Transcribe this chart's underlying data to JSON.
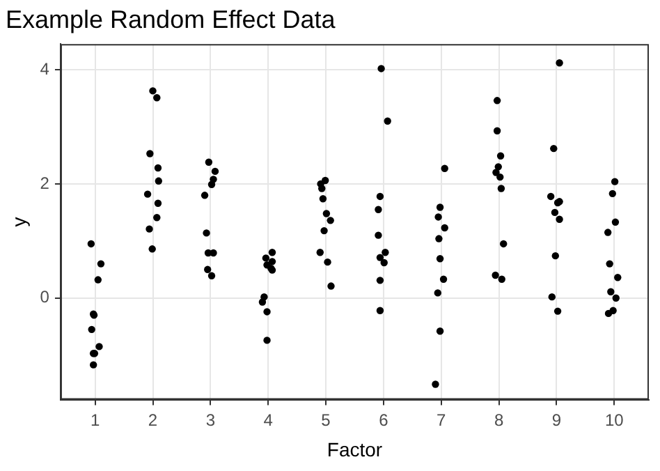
{
  "chart_data": {
    "type": "scatter",
    "title": "Example Random Effect Data",
    "xlabel": "Factor",
    "ylabel": "y",
    "color": "#000000",
    "marker": "circle",
    "grid": true,
    "xlim": [
      0.4,
      10.6
    ],
    "xticks": [
      1,
      2,
      3,
      4,
      5,
      6,
      7,
      8,
      9,
      10
    ],
    "ylim": [
      -1.78,
      4.45
    ],
    "yticks": [
      0,
      2,
      4
    ],
    "x": [
      0.93,
      1.1,
      1.05,
      0.97,
      0.98,
      0.94,
      1.07,
      0.97,
      0.99,
      0.97,
      2.0,
      2.07,
      1.95,
      2.09,
      2.1,
      1.91,
      2.09,
      2.07,
      1.94,
      1.99,
      2.97,
      3.08,
      3.05,
      3.02,
      2.9,
      2.93,
      2.96,
      3.05,
      2.95,
      3.02,
      4.07,
      3.96,
      4.07,
      3.98,
      4.07,
      4.05,
      3.93,
      3.9,
      3.98,
      3.98,
      4.99,
      4.91,
      4.93,
      4.95,
      5.01,
      5.08,
      4.97,
      4.9,
      5.03,
      5.09,
      5.96,
      6.07,
      5.94,
      5.91,
      5.91,
      6.03,
      5.94,
      6.01,
      5.94,
      5.94,
      7.06,
      6.98,
      6.95,
      7.06,
      6.96,
      6.98,
      7.04,
      6.94,
      6.98,
      6.9,
      7.97,
      7.97,
      8.03,
      7.99,
      7.95,
      8.02,
      8.04,
      8.08,
      7.94,
      8.05,
      9.05,
      8.95,
      8.9,
      9.05,
      9.02,
      8.97,
      9.05,
      8.98,
      8.92,
      9.02,
      10.01,
      9.97,
      10.02,
      9.89,
      9.92,
      10.06,
      9.94,
      10.03,
      9.98,
      9.9
    ],
    "values": [
      0.95,
      0.6,
      0.32,
      -0.28,
      -0.3,
      -0.55,
      -0.85,
      -0.97,
      -0.97,
      -1.17,
      3.63,
      3.51,
      2.53,
      2.28,
      2.05,
      1.82,
      1.66,
      1.41,
      1.21,
      0.86,
      2.38,
      2.22,
      2.08,
      1.99,
      1.8,
      1.14,
      0.79,
      0.79,
      0.5,
      0.39,
      0.8,
      0.7,
      0.64,
      0.58,
      0.49,
      0.52,
      0.02,
      -0.07,
      -0.24,
      -0.74,
      2.06,
      2.0,
      1.92,
      1.74,
      1.48,
      1.36,
      1.18,
      0.8,
      0.63,
      0.21,
      4.02,
      3.1,
      1.78,
      1.55,
      1.1,
      0.8,
      0.71,
      0.62,
      0.31,
      -0.22,
      2.27,
      1.59,
      1.42,
      1.23,
      1.04,
      0.69,
      0.33,
      0.09,
      -0.58,
      -1.51,
      3.46,
      2.93,
      2.49,
      2.3,
      2.2,
      2.12,
      1.92,
      0.95,
      0.4,
      0.33,
      4.12,
      2.62,
      1.78,
      1.69,
      1.67,
      1.5,
      1.38,
      0.74,
      0.02,
      -0.23,
      2.04,
      1.83,
      1.33,
      1.15,
      0.6,
      0.36,
      0.11,
      0.0,
      -0.22,
      -0.27
    ]
  }
}
